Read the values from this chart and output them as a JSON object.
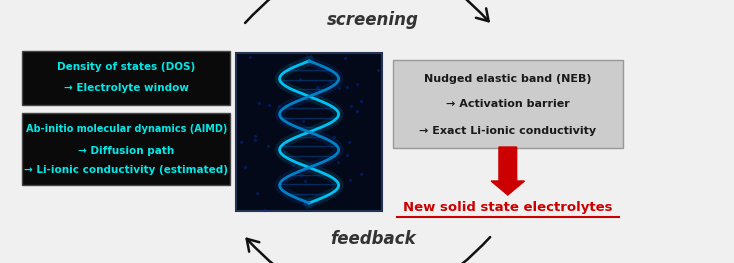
{
  "bg_color": "#f0f0f0",
  "screening_text": "screening",
  "feedback_text": "feedback",
  "dos_title": "Density of states (DOS)",
  "dos_sub": "→ Electrolyte window",
  "aimd_title": "Ab-initio molecular dynamics (AIMD)",
  "aimd_sub1": "→ Diffusion path",
  "aimd_sub2": "→ Li-ionic conductivity (estimated)",
  "neb_title": "Nudged elastic band (NEB)",
  "neb_sub1": "→ Activation barrier",
  "neb_sub2": "→ Exact Li-ionic conductivity",
  "result_text": "New solid state electrolytes",
  "left_box1_bg": "#0a0a0a",
  "left_box2_bg": "#0a0a0a",
  "left_text_color": "#00e8e8",
  "right_box_bg": "#cccccc",
  "right_text_color": "#1a1a1a",
  "result_color": "#cc0000",
  "arrow_color": "#111111",
  "red_arrow_color": "#cc0000",
  "screening_color": "#333333",
  "feedback_color": "#333333"
}
